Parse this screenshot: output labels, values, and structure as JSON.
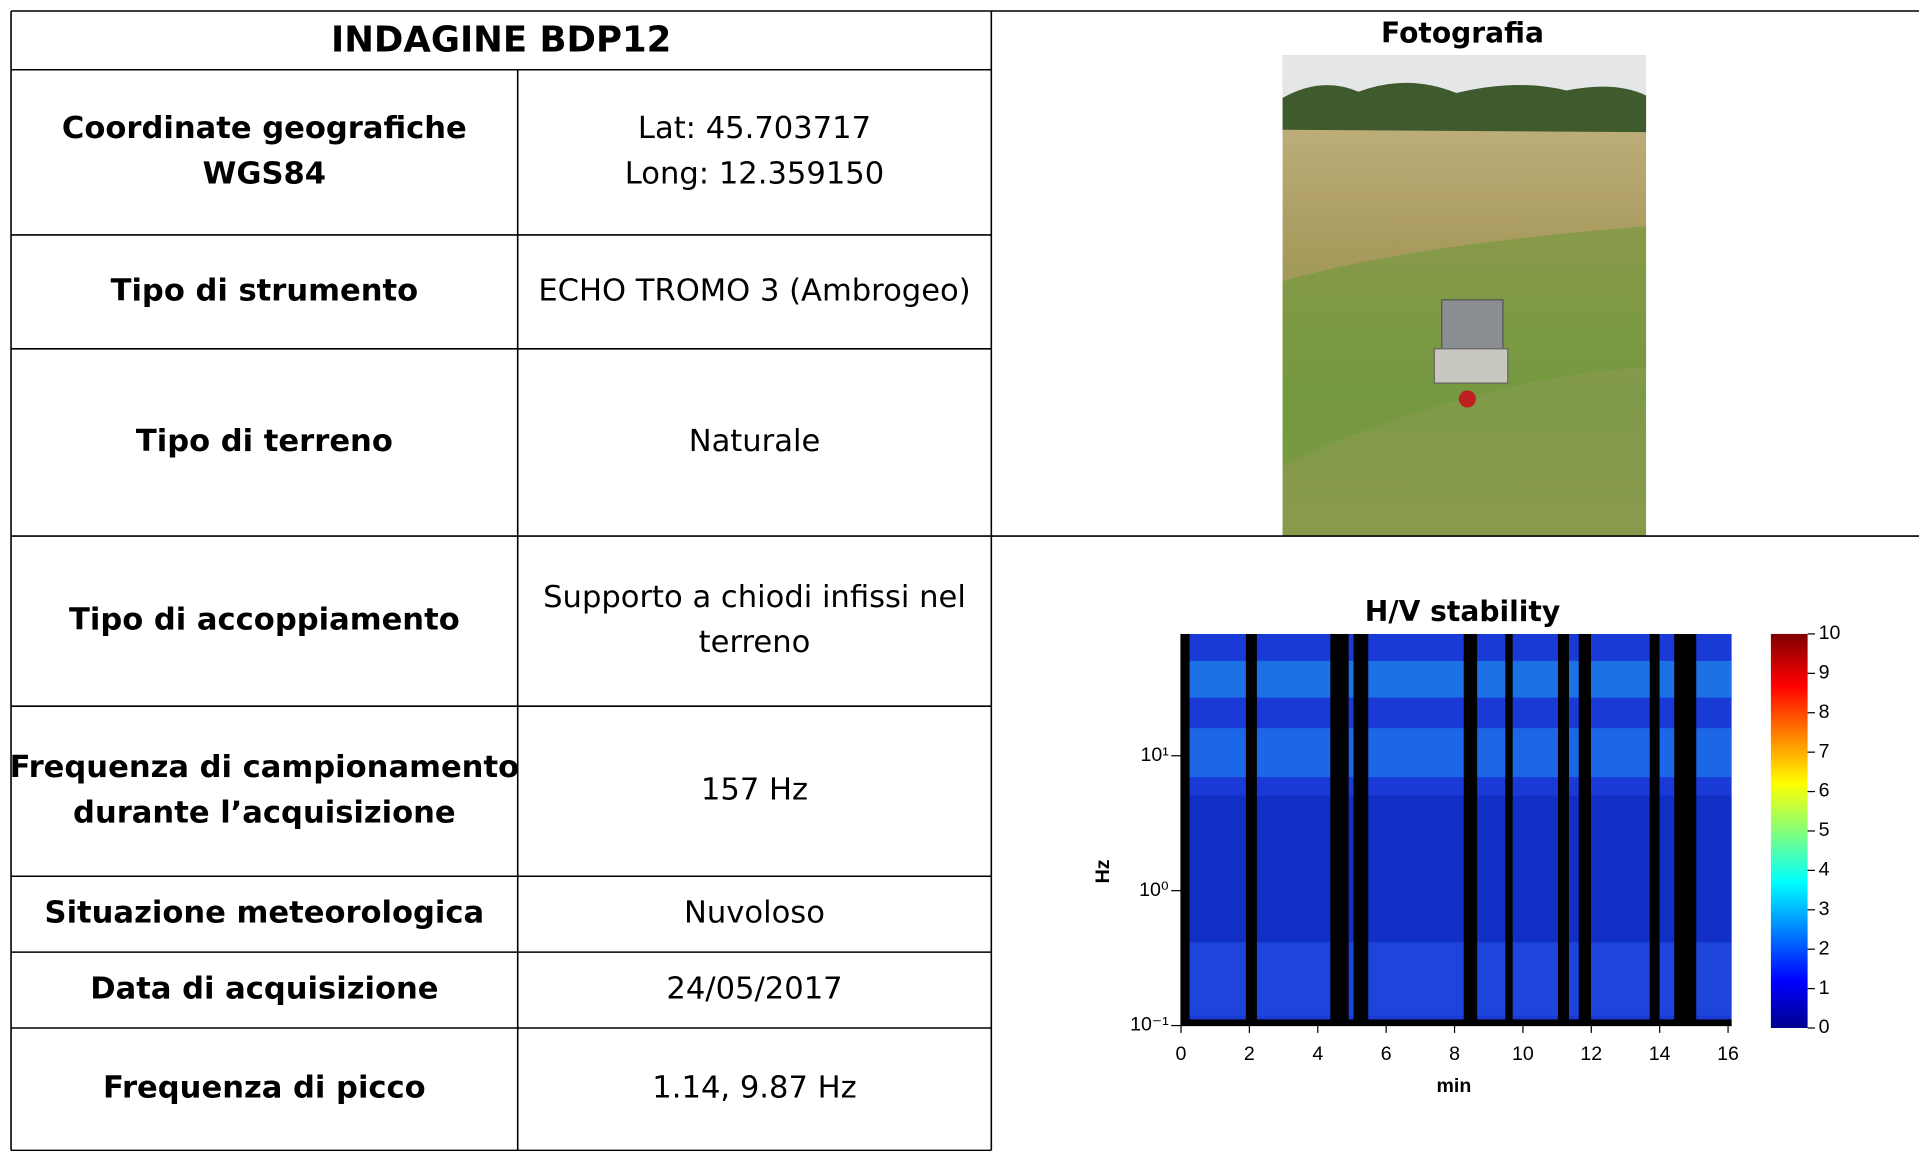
{
  "title": "INDAGINE BDP12",
  "photo_caption": "Fotografia",
  "table": {
    "rows": [
      [
        [
          "Coordinate geografiche",
          "WGS84"
        ],
        [
          "Lat: 45.703717",
          "Long: 12.359150"
        ]
      ],
      [
        [
          "Tipo di strumento"
        ],
        [
          "ECHO TROMO 3 (Ambrogeo)"
        ]
      ],
      [
        [
          "Tipo di terreno"
        ],
        [
          "Naturale"
        ]
      ],
      [
        [
          "Tipo di accoppiamento"
        ],
        [
          "Supporto a chiodi infissi nel",
          "terreno"
        ]
      ],
      [
        [
          "Frequenza di campionamento",
          "durante l’acquisizione"
        ],
        [
          "157 Hz"
        ]
      ],
      [
        [
          "Situazione meteorologica"
        ],
        [
          "Nuvoloso"
        ]
      ],
      [
        [
          "Data di acquisizione"
        ],
        [
          "24/05/2017"
        ]
      ],
      [
        [
          "Frequenza di picco"
        ],
        [
          "1.14, 9.87 Hz"
        ]
      ]
    ]
  },
  "chart_data": {
    "type": "heatmap",
    "title": "H/V stability",
    "x_label": "min",
    "y_label": "Hz",
    "xlim": [
      0,
      16
    ],
    "xticks": [
      0,
      2,
      4,
      6,
      8,
      10,
      12,
      14,
      16
    ],
    "log_y": true,
    "ylim": [
      0.1,
      80
    ],
    "yticks": [
      {
        "value": 0.1,
        "label": "10⁻¹"
      },
      {
        "value": 1,
        "label": "10⁰"
      },
      {
        "value": 10,
        "label": "10¹"
      }
    ],
    "colorbar_lim": [
      0,
      10
    ],
    "colorbar_ticks": [
      0,
      1,
      2,
      3,
      4,
      5,
      6,
      7,
      8,
      9,
      10
    ]
  }
}
